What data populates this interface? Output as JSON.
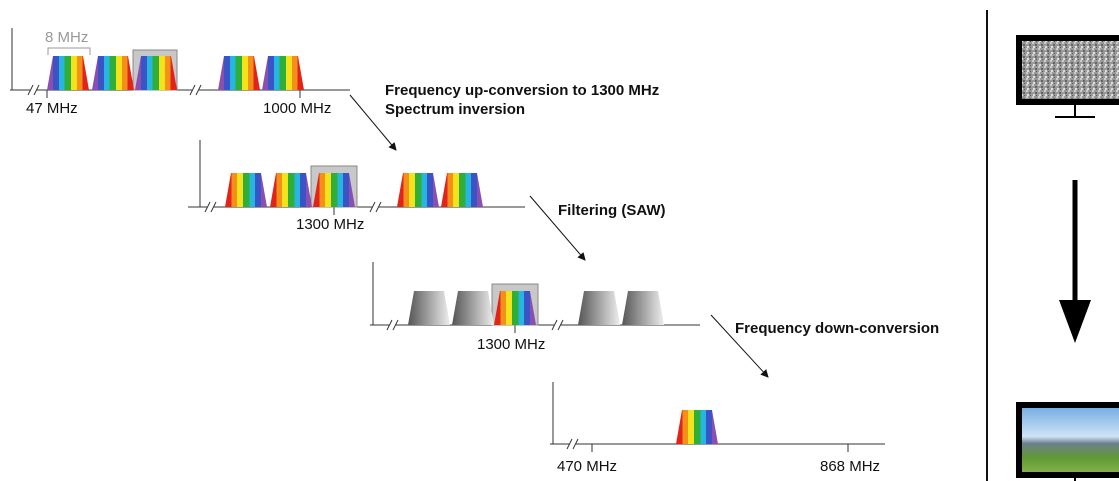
{
  "input_spectrum": {
    "bandwidth_label": "8 MHz",
    "start_label": "47 MHz",
    "end_label": "1000 MHz"
  },
  "steps": [
    {
      "lines": [
        "Frequency up-conversion to 1300 MHz",
        "Spectrum inversion"
      ]
    },
    {
      "lines": [
        "Filtering (SAW)"
      ]
    },
    {
      "lines": [
        "Frequency down-conversion"
      ]
    }
  ],
  "converted_spectrum": {
    "center_label": "1300 MHz"
  },
  "filtered_spectrum": {
    "center_label": "1300 MHz"
  },
  "output_spectrum": {
    "start_label": "470 MHz",
    "end_label": "868 MHz"
  }
}
